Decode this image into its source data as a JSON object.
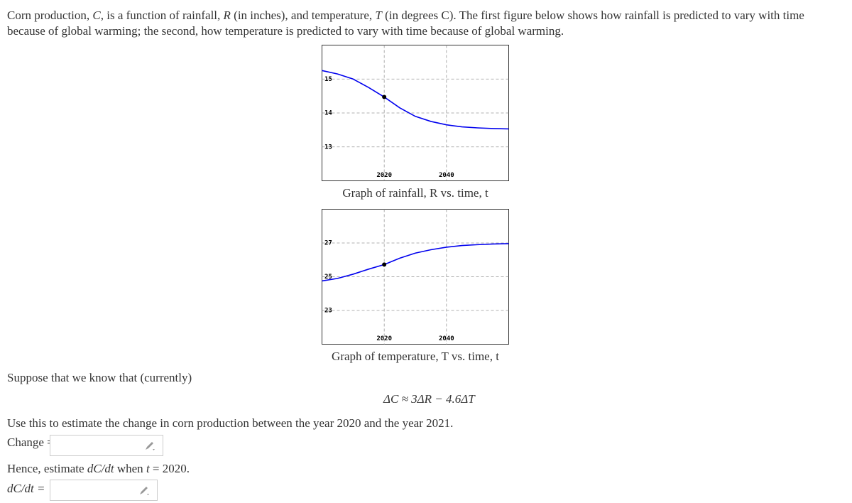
{
  "intro": [
    "Corn production, ",
    "C",
    ", is a function of rainfall, ",
    "R",
    " (in inches), and temperature, ",
    "T",
    " (in degrees C). The first figure below shows how rainfall is predicted to vary with time because of global warming; the second, how temperature is predicted to vary with time because of global warming."
  ],
  "chart_data": [
    {
      "type": "line",
      "title": "Graph of rainfall, R vs. time, t",
      "x": [
        2000,
        2005,
        2010,
        2015,
        2020,
        2025,
        2030,
        2035,
        2040,
        2045,
        2050,
        2055,
        2060
      ],
      "values": [
        15.25,
        15.15,
        15.0,
        14.75,
        14.47,
        14.15,
        13.9,
        13.75,
        13.65,
        13.59,
        13.56,
        13.54,
        13.53
      ],
      "markers": {
        "x": [
          2020
        ],
        "values": [
          14.47
        ]
      },
      "color": "#0000ee",
      "xlim": [
        2000,
        2060
      ],
      "ylim": [
        12,
        16
      ],
      "xticks": [
        2020,
        2040
      ],
      "yticks": [
        13,
        14,
        15
      ],
      "grid": true
    },
    {
      "type": "line",
      "title": "Graph of temperature, T vs. time, t",
      "x": [
        2000,
        2005,
        2010,
        2015,
        2020,
        2025,
        2030,
        2035,
        2040,
        2045,
        2050,
        2055,
        2060
      ],
      "values": [
        24.75,
        24.9,
        25.15,
        25.45,
        25.72,
        26.1,
        26.4,
        26.6,
        26.75,
        26.85,
        26.9,
        26.94,
        26.96
      ],
      "markers": {
        "x": [
          2020
        ],
        "values": [
          25.72
        ]
      },
      "color": "#0000ee",
      "xlim": [
        2000,
        2060
      ],
      "ylim": [
        21,
        29
      ],
      "xticks": [
        2020,
        2040
      ],
      "yticks": [
        23,
        25,
        27
      ],
      "grid": true
    }
  ],
  "suppose": "Suppose that we know that (currently)",
  "formula": "ΔC ≈ 3ΔR − 4.6ΔT",
  "instruction": "Use this to estimate the change in corn production between the year 2020 and the year 2021.",
  "change_label": "Change =",
  "hence": [
    "Hence, estimate ",
    "dC/dt",
    " when ",
    "t",
    " = 2020."
  ],
  "rate_label": "dC/dt ="
}
